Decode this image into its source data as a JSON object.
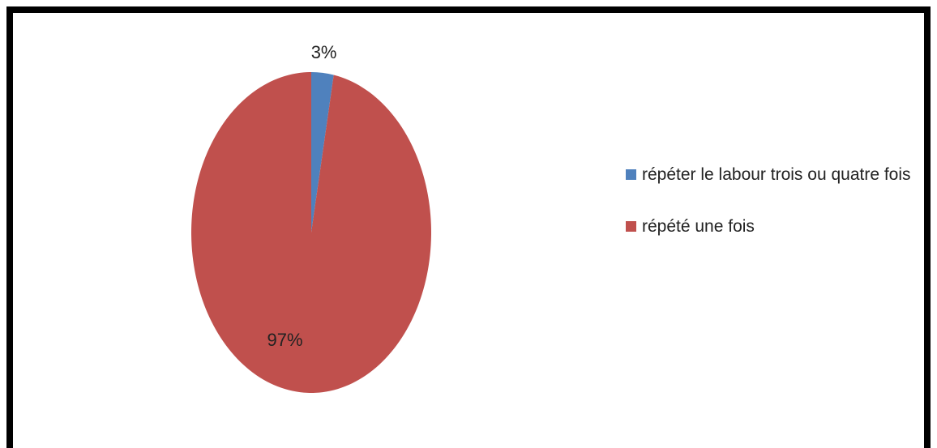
{
  "chart_data": {
    "type": "pie",
    "categories": [
      "répéter le labour trois ou quatre fois",
      "répété une fois"
    ],
    "values": [
      3,
      97
    ],
    "value_labels": [
      "3%",
      "97%"
    ],
    "colors": [
      "#4f81bd",
      "#c0504d"
    ],
    "legend": "right"
  }
}
